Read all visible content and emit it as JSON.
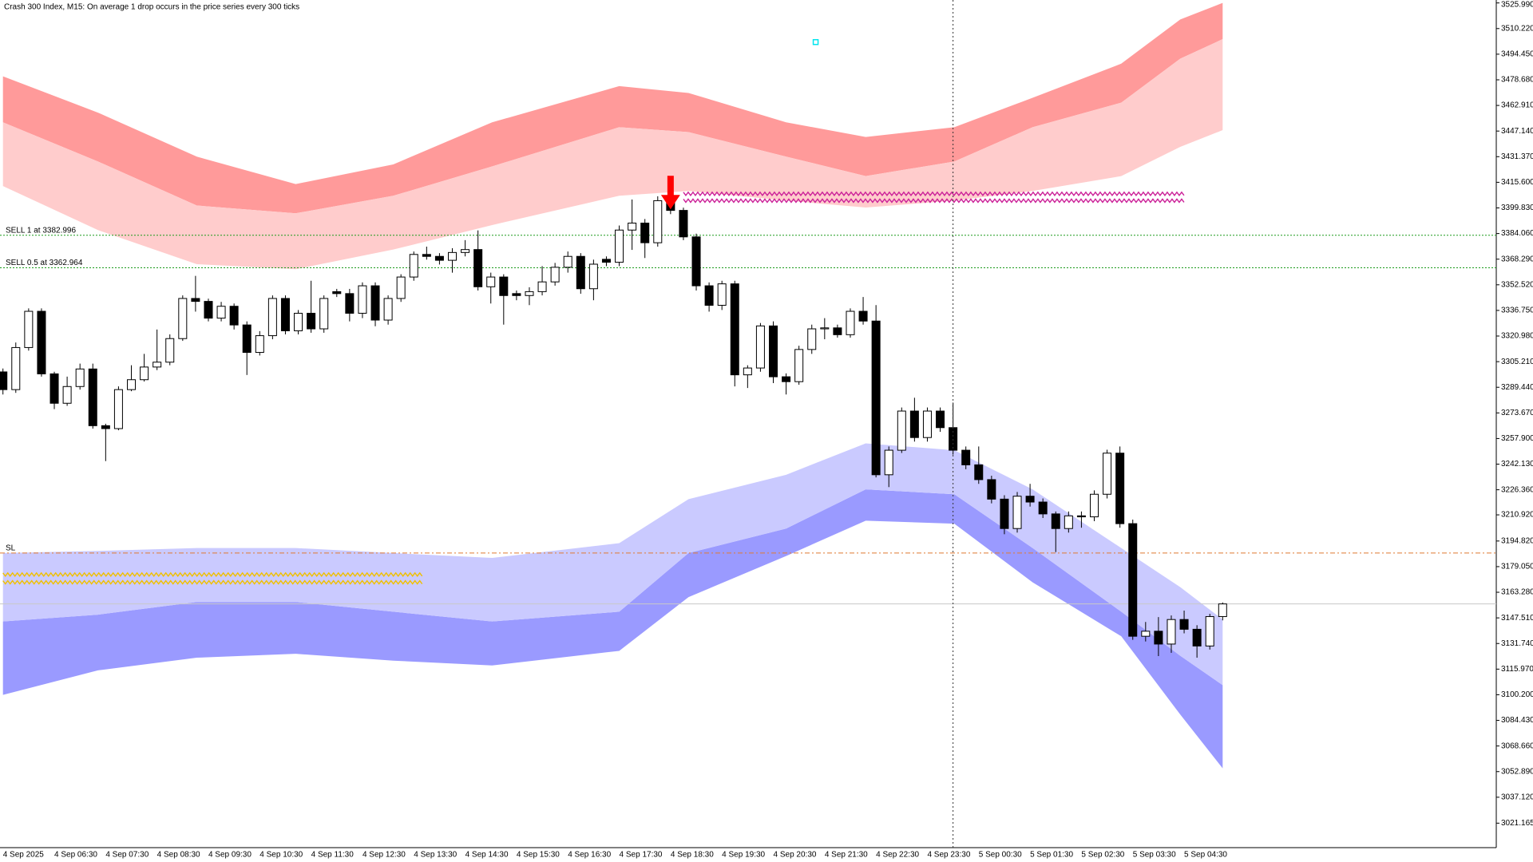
{
  "chart_data": {
    "type": "candlestick",
    "title": "Crash 300 Index, M15:  On average 1 drop occurs in the price series every 300 ticks",
    "categories": [
      "4 Sep 2025",
      null,
      null,
      null,
      "4 Sep 06:30",
      null,
      null,
      null,
      "4 Sep 07:30",
      null,
      null,
      null,
      "4 Sep 08:30",
      null,
      null,
      null,
      "4 Sep 09:30",
      null,
      null,
      null,
      "4 Sep 10:30",
      null,
      null,
      null,
      "4 Sep 11:30",
      null,
      null,
      null,
      "4 Sep 12:30",
      null,
      null,
      null,
      "4 Sep 13:30",
      null,
      null,
      null,
      "4 Sep 14:30",
      null,
      null,
      null,
      "4 Sep 15:30",
      null,
      null,
      null,
      "4 Sep 16:30",
      null,
      null,
      null,
      "4 Sep 17:30",
      null,
      null,
      null,
      "4 Sep 18:30",
      null,
      null,
      null,
      "4 Sep 19:30",
      null,
      null,
      null,
      "4 Sep 20:30",
      null,
      null,
      null,
      "4 Sep 21:30",
      null,
      null,
      null,
      "4 Sep 22:30",
      null,
      null,
      null,
      "4 Sep 23:30",
      null,
      null,
      null,
      "5 Sep 00:30",
      null,
      null,
      null,
      "5 Sep 01:30",
      null,
      null,
      null,
      "5 Sep 02:30",
      null,
      null,
      null,
      "5 Sep 03:30",
      null,
      null,
      null,
      "5 Sep 04:30",
      null,
      null,
      null
    ],
    "open": [
      3298.9,
      3288.0,
      3313.9,
      3336.2,
      3297.7,
      3279.6,
      3289.9,
      3300.7,
      3265.8,
      3264.0,
      3288.0,
      3294.1,
      3301.9,
      3304.9,
      3319.4,
      3344.1,
      3342.3,
      3332.0,
      3339.3,
      3327.8,
      3310.9,
      3321.2,
      3344.1,
      3324.2,
      3335.0,
      3325.4,
      3348.3,
      3347.1,
      3335.0,
      3351.9,
      3330.8,
      3344.1,
      3357.3,
      3371.2,
      3370.0,
      3367.6,
      3372.4,
      3374.2,
      3351.3,
      3357.3,
      3347.1,
      3345.9,
      3348.3,
      3354.3,
      3363.3,
      3370.0,
      3350.1,
      3368.2,
      3366.4,
      3386.2,
      3390.5,
      3378.4,
      3404.3,
      3398.3,
      3382.0,
      3351.9,
      3339.9,
      3353.1,
      3297.1,
      3301.3,
      3327.2,
      3295.9,
      3292.9,
      3312.7,
      3325.4,
      3326.0,
      3321.8,
      3336.2,
      3330.2,
      3235.6,
      3250.7,
      3274.8,
      3258.5,
      3274.8,
      3264.6,
      3250.7,
      3241.7,
      3232.6,
      3220.6,
      3202.5,
      3222.4,
      3218.8,
      3211.5,
      3202.5,
      3210.3,
      3209.7,
      3223.6,
      3248.9,
      3205.5,
      3136.2,
      3139.3,
      3131.4,
      3146.5,
      3140.5,
      3130.2,
      3148.3
    ],
    "high": [
      3301,
      3317,
      3338,
      3338,
      3299,
      3296,
      3304,
      3304,
      3267,
      3290,
      3303,
      3310,
      3325,
      3322,
      3346,
      3358,
      3344,
      3342,
      3341,
      3330,
      3324,
      3346,
      3346,
      3337,
      3355,
      3346,
      3350,
      3350,
      3354,
      3354,
      3346,
      3359,
      3373,
      3376,
      3372,
      3375,
      3380,
      3386,
      3360,
      3359,
      3349,
      3351,
      3364,
      3366,
      3373,
      3372,
      3368,
      3370,
      3389,
      3405,
      3393,
      3407,
      3407,
      3400,
      3384,
      3354,
      3355,
      3355,
      3303,
      3329,
      3330,
      3298,
      3315,
      3328,
      3332,
      3328,
      3338,
      3345,
      3340,
      3253,
      3277,
      3283,
      3277,
      3277,
      3280,
      3253,
      3253,
      3235,
      3223,
      3225,
      3230,
      3221,
      3213,
      3213,
      3213,
      3226,
      3251,
      3253,
      3208,
      3145,
      3148,
      3149,
      3152,
      3143,
      3150,
      3157
    ],
    "low": [
      3285,
      3286,
      3312,
      3296,
      3276,
      3278,
      3288,
      3264,
      3244,
      3263,
      3287,
      3293,
      3300,
      3303,
      3318,
      3336,
      3330,
      3330,
      3325,
      3297,
      3309,
      3319,
      3322,
      3322,
      3323,
      3323,
      3345,
      3330,
      3332,
      3327,
      3328,
      3342,
      3355,
      3368,
      3365,
      3360,
      3370,
      3349,
      3341,
      3328,
      3343,
      3340,
      3346,
      3352,
      3360,
      3347,
      3343,
      3364,
      3364,
      3374,
      3369,
      3376,
      3396,
      3380,
      3349,
      3336,
      3337,
      3290,
      3289,
      3299,
      3292,
      3285,
      3291,
      3310,
      3319,
      3320,
      3320,
      3328,
      3234,
      3228,
      3249,
      3256,
      3256,
      3262,
      3248,
      3239,
      3230,
      3218,
      3199,
      3200,
      3216,
      3209,
      3188,
      3200,
      3203,
      3207,
      3221,
      3203,
      3134,
      3133,
      3124,
      3126,
      3138,
      3123,
      3128,
      3146
    ],
    "close": [
      3288.0,
      3313.9,
      3336.2,
      3297.7,
      3279.6,
      3289.9,
      3300.7,
      3265.8,
      3264.0,
      3288.0,
      3294.1,
      3301.9,
      3304.9,
      3319.4,
      3344.1,
      3342.3,
      3332.0,
      3339.3,
      3327.8,
      3310.9,
      3321.2,
      3344.1,
      3324.2,
      3335.0,
      3325.4,
      3344.1,
      3347.1,
      3335.0,
      3351.9,
      3330.8,
      3344.1,
      3357.3,
      3371.2,
      3370.0,
      3367.6,
      3372.4,
      3374.2,
      3351.3,
      3357.3,
      3345.9,
      3345.9,
      3348.3,
      3354.3,
      3363.3,
      3370.0,
      3350.1,
      3365.2,
      3366.4,
      3386.2,
      3390.5,
      3378.4,
      3404.3,
      3398.3,
      3382.0,
      3351.9,
      3339.9,
      3353.1,
      3297.1,
      3301.3,
      3327.2,
      3295.9,
      3292.9,
      3312.7,
      3325.4,
      3326.0,
      3321.8,
      3336.2,
      3330.2,
      3235.6,
      3250.7,
      3274.8,
      3258.5,
      3274.8,
      3264.6,
      3250.7,
      3241.7,
      3232.6,
      3220.6,
      3202.5,
      3222.4,
      3218.8,
      3211.5,
      3202.5,
      3210.3,
      3209.7,
      3223.6,
      3248.9,
      3205.5,
      3136.2,
      3139.3,
      3131.4,
      3146.5,
      3140.5,
      3130.2,
      3148.3,
      3156.1
    ],
    "up_color": "#ffffff",
    "down_color": "#000000",
    "ylim": [
      3006.1,
      3527.8
    ],
    "yticks": [
      {
        "value": 3525.99,
        "label": "3525.990"
      },
      {
        "value": 3510.22,
        "label": "3510.220"
      },
      {
        "value": 3494.45,
        "label": "3494.450"
      },
      {
        "value": 3478.68,
        "label": "3478.680"
      },
      {
        "value": 3462.91,
        "label": "3462.910"
      },
      {
        "value": 3447.14,
        "label": "3447.140"
      },
      {
        "value": 3431.37,
        "label": "3431.370"
      },
      {
        "value": 3415.6,
        "label": "3415.600"
      },
      {
        "value": 3399.83,
        "label": "3399.830"
      },
      {
        "value": 3384.06,
        "label": "3384.060"
      },
      {
        "value": 3368.29,
        "label": "3368.290"
      },
      {
        "value": 3352.52,
        "label": "3352.520"
      },
      {
        "value": 3336.75,
        "label": "3336.750"
      },
      {
        "value": 3320.98,
        "label": "3320.980"
      },
      {
        "value": 3305.21,
        "label": "3305.210"
      },
      {
        "value": 3289.44,
        "label": "3289.440"
      },
      {
        "value": 3273.67,
        "label": "3273.670"
      },
      {
        "value": 3257.9,
        "label": "3257.900"
      },
      {
        "value": 3242.13,
        "label": "3242.130"
      },
      {
        "value": 3226.36,
        "label": "3226.360"
      },
      {
        "value": 3210.92,
        "label": "3210.920"
      },
      {
        "value": 3194.82,
        "label": "3194.820"
      },
      {
        "value": 3179.05,
        "label": "3179.050"
      },
      {
        "value": 3163.28,
        "label": "3163.280"
      },
      {
        "value": 3147.51,
        "label": "3147.510"
      },
      {
        "value": 3131.74,
        "label": "3131.740"
      },
      {
        "value": 3115.97,
        "label": "3115.970"
      },
      {
        "value": 3100.2,
        "label": "3100.200"
      },
      {
        "value": 3084.43,
        "label": "3084.430"
      },
      {
        "value": 3068.66,
        "label": "3068.660"
      },
      {
        "value": 3052.89,
        "label": "3052.890"
      },
      {
        "value": 3037.12,
        "label": "3037.120"
      },
      {
        "value": 3021.165,
        "label": "3021.165"
      }
    ],
    "envelopes": [
      {
        "x": [
          0,
          7.4,
          15.1,
          22.8,
          30.4,
          38.1,
          48,
          53.4,
          61,
          67.2,
          74.1,
          80.2,
          87.1,
          91.7,
          95
        ],
        "outer_color": "#ff9a9a",
        "inner_color": "#ffcccc",
        "outer": [
          3480.8,
          3458.5,
          3431.4,
          3414.5,
          3426.6,
          3452.5,
          3474.8,
          3470.6,
          3452.5,
          3443.5,
          3449.5,
          3467.6,
          3488.6,
          3515.8,
          3526.0
        ],
        "mid": [
          3452.5,
          3428.4,
          3401.3,
          3396.5,
          3407.3,
          3425.4,
          3449.5,
          3446.5,
          3431.4,
          3419.4,
          3428.4,
          3449.5,
          3464.6,
          3491.7,
          3503.7
        ],
        "inner": [
          3413.3,
          3386.2,
          3365.2,
          3362.1,
          3374.2,
          3389.3,
          3407.3,
          3410.3,
          3404.3,
          3400.1,
          3404.3,
          3410.3,
          3419.4,
          3437.4,
          3447.7
        ]
      },
      {
        "x": [
          0,
          7.4,
          15.1,
          22.8,
          30.4,
          38.1,
          48,
          53.4,
          61,
          67.2,
          74.1,
          80.2,
          87.1,
          91.7,
          95
        ],
        "outer_color": "#9a9aff",
        "inner_color": "#cacaff",
        "outer": [
          3100.1,
          3115.2,
          3123.0,
          3125.4,
          3121.2,
          3118.2,
          3127.2,
          3160.3,
          3185.6,
          3207.3,
          3205.5,
          3169.4,
          3136.2,
          3088.0,
          3054.9
        ],
        "mid": [
          3145.3,
          3149.5,
          3157.3,
          3157.3,
          3151.3,
          3145.3,
          3151.3,
          3187.4,
          3202.5,
          3226.6,
          3223.6,
          3190.5,
          3151.3,
          3124.2,
          3106.1
        ],
        "inner": [
          3187.4,
          3188.7,
          3190.5,
          3190.5,
          3187.4,
          3184.4,
          3193.5,
          3220.6,
          3235.6,
          3254.9,
          3250.7,
          3226.6,
          3190.5,
          3166.4,
          3146.5
        ]
      }
    ],
    "levels": [
      {
        "label": "SELL 1 at 3382.996",
        "value": 3382.996,
        "color": "#1a9a1a",
        "dash": "2 2"
      },
      {
        "label": "SELL 0.5 at 3362.964",
        "value": 3362.964,
        "color": "#1a9a1a",
        "dash": "2 2"
      },
      {
        "label": "SL",
        "value": 3187.4,
        "color": "#e07a30",
        "dash": "6 3 2 3"
      }
    ],
    "zones": [
      {
        "start": 53,
        "end": 92,
        "rows": [
          3408.5,
          3404.3
        ],
        "color": "#cc2299"
      },
      {
        "start": 0,
        "end": 32.7,
        "rows": [
          3174.2,
          3169.4
        ],
        "color": "#f0c000"
      }
    ],
    "price_line": 3156.1,
    "crosshair_index": 74,
    "arrow": {
      "index": 52,
      "value": 3399.0,
      "color": "#ff0000"
    },
    "marker": {
      "index": 63.3,
      "value": 3501.9,
      "color": "#00e5ee"
    }
  }
}
